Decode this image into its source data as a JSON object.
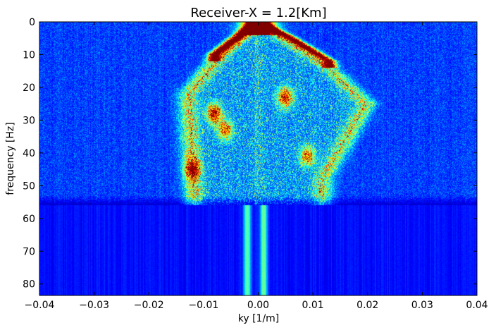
{
  "chart_data": {
    "type": "heatmap",
    "title": "Receiver-X = 1.2[Km]",
    "xlabel": "ky [1/m]",
    "ylabel": "frequency [Hz]",
    "xlim": [
      -0.04,
      0.04
    ],
    "ylim": [
      83.5,
      0
    ],
    "y_axis_inverted": true,
    "colormap": "jet",
    "colorbar": false,
    "grid": false,
    "x_ticks": [
      -0.04,
      -0.03,
      -0.02,
      -0.01,
      0.0,
      0.01,
      0.02,
      0.03,
      0.04
    ],
    "x_tick_labels": [
      "−0.04",
      "−0.03",
      "−0.02",
      "−0.01",
      "0.00",
      "0.01",
      "0.02",
      "0.03",
      "0.04"
    ],
    "y_ticks": [
      0,
      10,
      20,
      30,
      40,
      50,
      60,
      70,
      80
    ],
    "y_tick_labels": [
      "0",
      "10",
      "20",
      "30",
      "40",
      "50",
      "60",
      "70",
      "80"
    ],
    "signal_band_frequency_max_hz": 56,
    "dominant_features": [
      {
        "description": "saturated apex near zero wavenumber",
        "ky": 0.0,
        "frequency_hz": [
          0,
          3
        ],
        "intensity": 1.0
      },
      {
        "description": "left branch, strongest",
        "ky_at": [
          [
            0.0,
            0
          ],
          [
            -0.004,
            5
          ],
          [
            -0.008,
            10
          ]
        ],
        "intensity": 1.0
      },
      {
        "description": "right branch, strongest",
        "ky_at": [
          [
            0.0,
            0
          ],
          [
            0.006,
            5
          ],
          [
            0.013,
            12
          ]
        ],
        "intensity": 1.0
      },
      {
        "description": "left outer cone edge",
        "ky_at": [
          [
            0.0,
            0
          ],
          [
            -0.008,
            12
          ],
          [
            -0.013,
            22
          ],
          [
            -0.012,
            52
          ]
        ],
        "intensity": 0.55
      },
      {
        "description": "right outer cone edge",
        "ky_at": [
          [
            0.0,
            0
          ],
          [
            0.013,
            14
          ],
          [
            0.02,
            25
          ],
          [
            0.012,
            48
          ]
        ],
        "intensity": 0.5
      },
      {
        "description": "hot spots",
        "points": [
          [
            -0.008,
            28,
            0.9
          ],
          [
            -0.012,
            45,
            0.8
          ],
          [
            0.005,
            23,
            0.85
          ],
          [
            0.009,
            41,
            0.7
          ],
          [
            -0.006,
            33,
            0.7
          ]
        ]
      },
      {
        "description": "narrow vertical bands above cutoff",
        "ky": [
          -0.002,
          0.001
        ],
        "frequency_hz": [
          56,
          83.5
        ],
        "intensity": 0.35
      }
    ]
  }
}
